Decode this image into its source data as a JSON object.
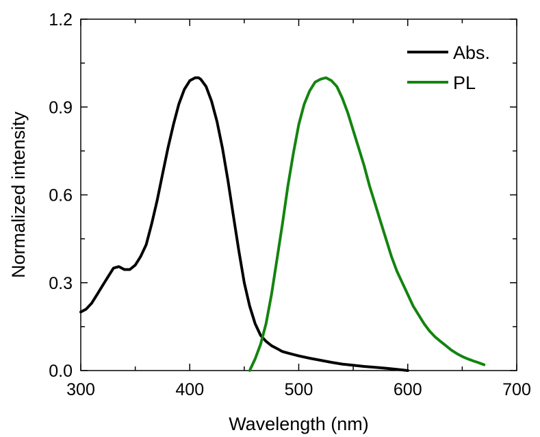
{
  "chart_data": {
    "type": "line",
    "xlabel": "Wavelength (nm)",
    "ylabel": "Normalized intensity",
    "xlim": [
      300,
      700
    ],
    "ylim": [
      0,
      1.2
    ],
    "x_ticks": [
      "300",
      "400",
      "500",
      "600",
      "700"
    ],
    "y_ticks": [
      "0.0",
      "0.3",
      "0.6",
      "0.9",
      "1.2"
    ],
    "grid": false,
    "legend_position": "top-right",
    "series": [
      {
        "name": "Abs.",
        "color": "#000000",
        "x": [
          300,
          305,
          310,
          315,
          320,
          325,
          330,
          335,
          340,
          345,
          350,
          355,
          360,
          365,
          370,
          375,
          380,
          385,
          390,
          395,
          400,
          405,
          408,
          410,
          415,
          420,
          425,
          430,
          435,
          440,
          445,
          450,
          455,
          460,
          465,
          470,
          475,
          480,
          485,
          490,
          495,
          500,
          510,
          520,
          530,
          540,
          550,
          560,
          570,
          580,
          590,
          600
        ],
        "y": [
          0.2,
          0.21,
          0.23,
          0.26,
          0.29,
          0.32,
          0.35,
          0.355,
          0.345,
          0.345,
          0.36,
          0.39,
          0.43,
          0.5,
          0.58,
          0.67,
          0.76,
          0.84,
          0.91,
          0.96,
          0.99,
          1.0,
          1.0,
          0.995,
          0.97,
          0.92,
          0.85,
          0.76,
          0.65,
          0.53,
          0.41,
          0.3,
          0.22,
          0.16,
          0.12,
          0.1,
          0.085,
          0.075,
          0.065,
          0.06,
          0.055,
          0.05,
          0.042,
          0.035,
          0.028,
          0.022,
          0.018,
          0.014,
          0.011,
          0.008,
          0.004,
          0.0
        ]
      },
      {
        "name": "PL",
        "color": "#13840f",
        "x": [
          455,
          460,
          465,
          470,
          475,
          480,
          485,
          490,
          495,
          500,
          505,
          510,
          515,
          520,
          525,
          530,
          535,
          540,
          545,
          550,
          555,
          560,
          565,
          570,
          575,
          580,
          585,
          590,
          595,
          600,
          605,
          610,
          615,
          620,
          625,
          630,
          635,
          640,
          645,
          650,
          655,
          660,
          665,
          670
        ],
        "y": [
          0.0,
          0.04,
          0.09,
          0.16,
          0.26,
          0.38,
          0.5,
          0.63,
          0.74,
          0.84,
          0.91,
          0.955,
          0.985,
          0.995,
          1.0,
          0.99,
          0.97,
          0.93,
          0.88,
          0.82,
          0.76,
          0.7,
          0.63,
          0.57,
          0.51,
          0.45,
          0.39,
          0.34,
          0.3,
          0.26,
          0.22,
          0.19,
          0.16,
          0.135,
          0.115,
          0.1,
          0.085,
          0.07,
          0.058,
          0.048,
          0.04,
          0.033,
          0.027,
          0.02
        ]
      }
    ]
  }
}
